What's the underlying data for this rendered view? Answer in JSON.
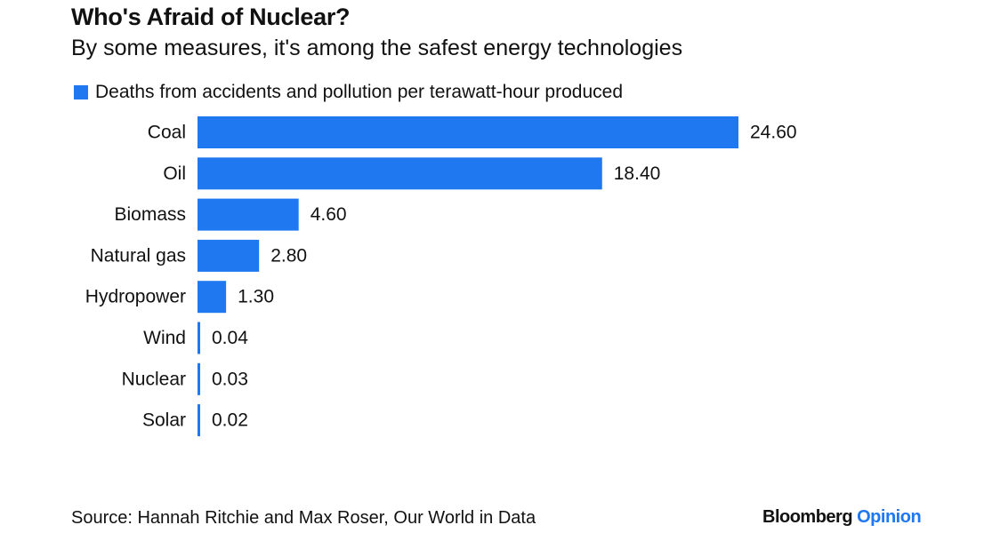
{
  "header": {
    "title": "Who's Afraid of Nuclear?",
    "subtitle": "By some measures, it's among the safest energy technologies"
  },
  "colors": {
    "bar": "#1f78f0",
    "text": "#111111",
    "brand_opinion": "#1f78f0"
  },
  "chart_data": {
    "type": "bar",
    "orientation": "horizontal",
    "categories": [
      "Coal",
      "Oil",
      "Biomass",
      "Natural gas",
      "Hydropower",
      "Wind",
      "Nuclear",
      "Solar"
    ],
    "series": [
      {
        "name": "Deaths from accidents and pollution per terawatt-hour produced",
        "values": [
          24.6,
          18.4,
          4.6,
          2.8,
          1.3,
          0.04,
          0.03,
          0.02
        ],
        "labels": [
          "24.60",
          "18.40",
          "4.60",
          "2.80",
          "1.30",
          "0.04",
          "0.03",
          "0.02"
        ]
      }
    ],
    "xlim": [
      0,
      24.6
    ],
    "legend_position": "top-left",
    "grid": false,
    "title": "Who's Afraid of Nuclear?",
    "subtitle": "By some measures, it's among the safest energy technologies"
  },
  "footer": {
    "source": "Source: Hannah Ritchie and Max Roser, Our World in Data",
    "brand_bloomberg": "Bloomberg",
    "brand_opinion": "Opinion"
  }
}
